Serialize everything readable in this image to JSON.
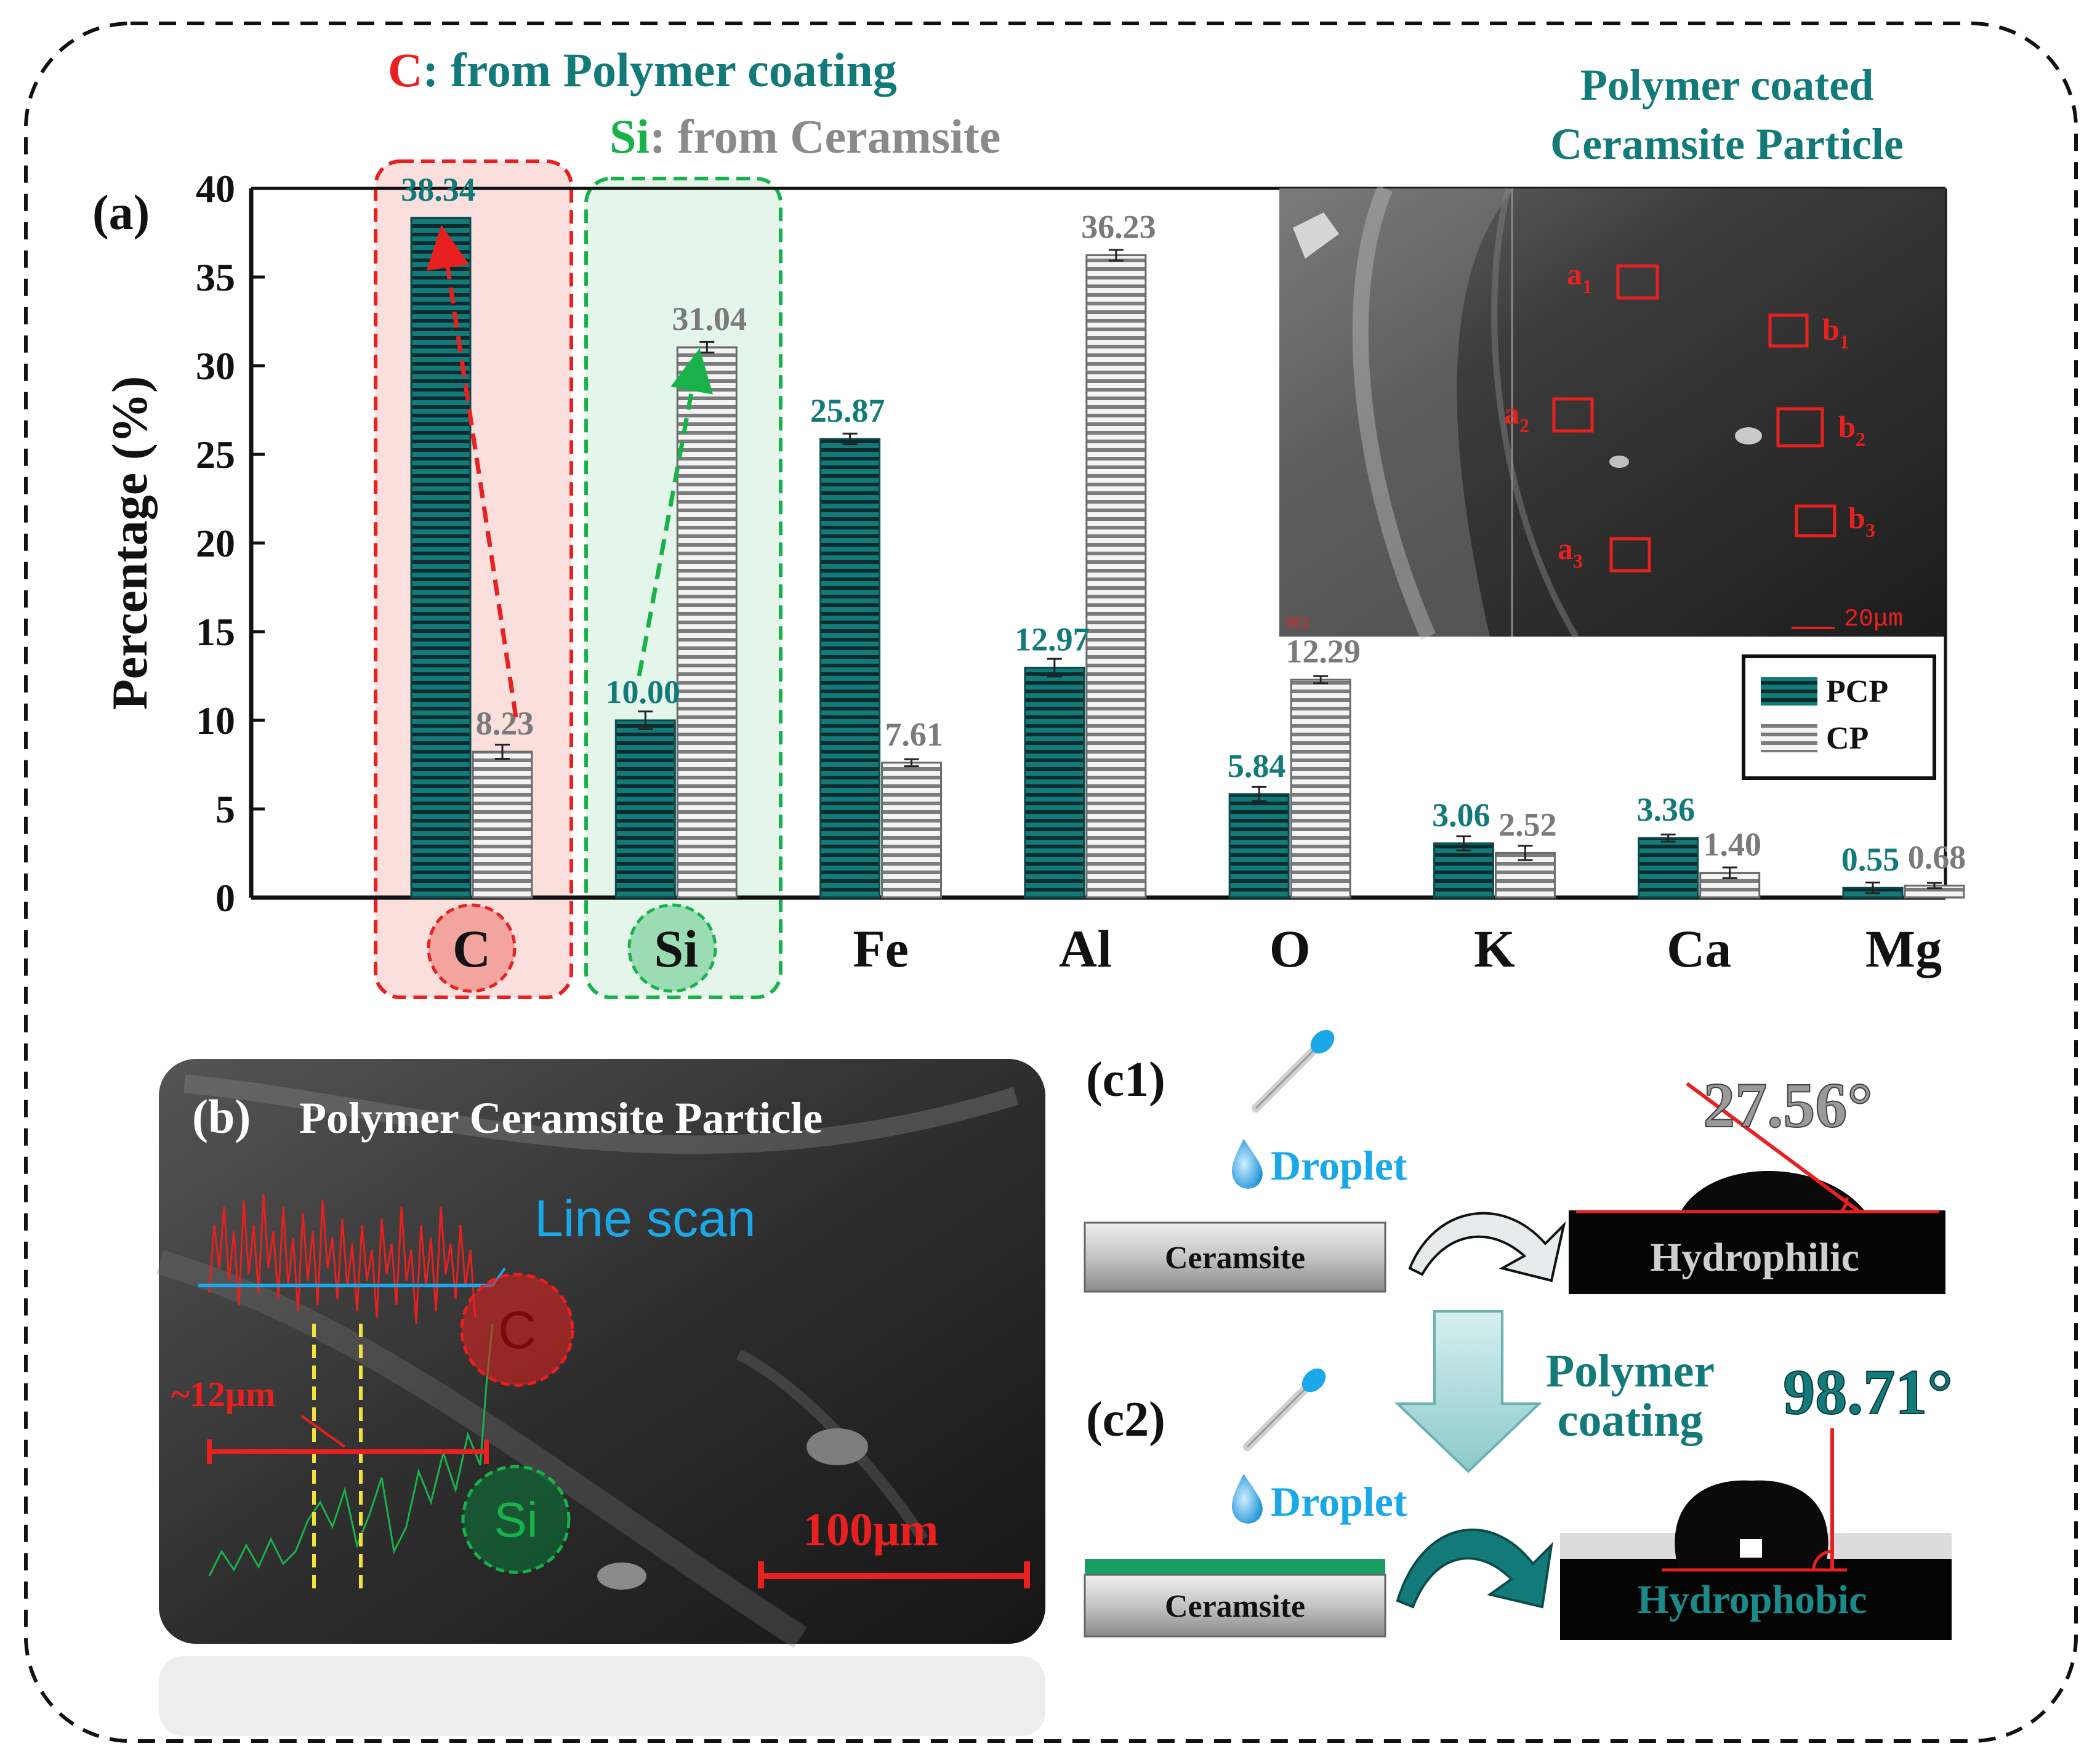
{
  "colors": {
    "pcp": "#137a7a",
    "pcp_label": "#137a7a",
    "cp": "#9a9a9a",
    "cp_label": "#7a7a7a",
    "red": "#e8201f",
    "green": "#19b24a",
    "teal_text": "#137a7a",
    "blue": "#1aa8e8"
  },
  "annotations": {
    "c_symbol": "C",
    "c_text": ": from Polymer coating",
    "si_symbol": "Si",
    "si_text": ": from Ceramsite",
    "inset_title_line1": "Polymer coated",
    "inset_title_line2": "Ceramsite Particle"
  },
  "chart_data": {
    "type": "bar",
    "panel_label": "(a)",
    "ylabel": "Percentage (%)",
    "xlabel": "",
    "ylim": [
      0,
      40
    ],
    "yticks": [
      0,
      5,
      10,
      15,
      20,
      25,
      30,
      35,
      40
    ],
    "categories": [
      "C",
      "Si",
      "Fe",
      "Al",
      "O",
      "K",
      "Ca",
      "Mg"
    ],
    "series": [
      {
        "name": "PCP",
        "values": [
          38.34,
          10.0,
          25.87,
          12.97,
          5.84,
          3.06,
          3.36,
          0.55
        ],
        "errors": [
          0.0,
          0.5,
          0.3,
          0.5,
          0.4,
          0.4,
          0.2,
          0.3
        ]
      },
      {
        "name": "CP",
        "values": [
          8.23,
          31.04,
          7.61,
          36.23,
          12.29,
          2.52,
          1.4,
          0.68
        ],
        "errors": [
          0.4,
          0.3,
          0.2,
          0.3,
          0.2,
          0.4,
          0.3,
          0.15
        ]
      }
    ],
    "value_labels": {
      "PCP": [
        "38.34",
        "10.00",
        "25.87",
        "12.97",
        "5.84",
        "3.06",
        "3.36",
        "0.55"
      ],
      "CP": [
        "8.23",
        "31.04",
        "7.61",
        "36.23",
        "12.29",
        "2.52",
        "1.40",
        "0.68"
      ]
    },
    "legend": [
      "PCP",
      "CP"
    ],
    "legend_position": "right, below inset image"
  },
  "sem_inset": {
    "points_a": [
      "a",
      "a",
      "a"
    ],
    "points_a_sub": [
      "1",
      "2",
      "3"
    ],
    "points_b": [
      "b",
      "b",
      "b"
    ],
    "points_b_sub": [
      "1",
      "2",
      "3"
    ],
    "corner_label": "SE1",
    "scale_label": "20μm"
  },
  "panel_b": {
    "label": "(b)",
    "title": "Polymer Ceramsite Particle",
    "line_scan": "Line scan",
    "c_marker": "C",
    "si_marker": "Si",
    "width_label": "~12μm",
    "scale_label": "100μm"
  },
  "panel_c": {
    "c1_label": "(c1)",
    "c2_label": "(c2)",
    "droplet": "Droplet",
    "substrate": "Ceramsite",
    "hydrophilic": "Hydrophilic",
    "hydrophobic": "Hydrophobic",
    "angle1": "27.56°",
    "angle2": "98.71°",
    "process_line1": "Polymer",
    "process_line2": "coating"
  }
}
